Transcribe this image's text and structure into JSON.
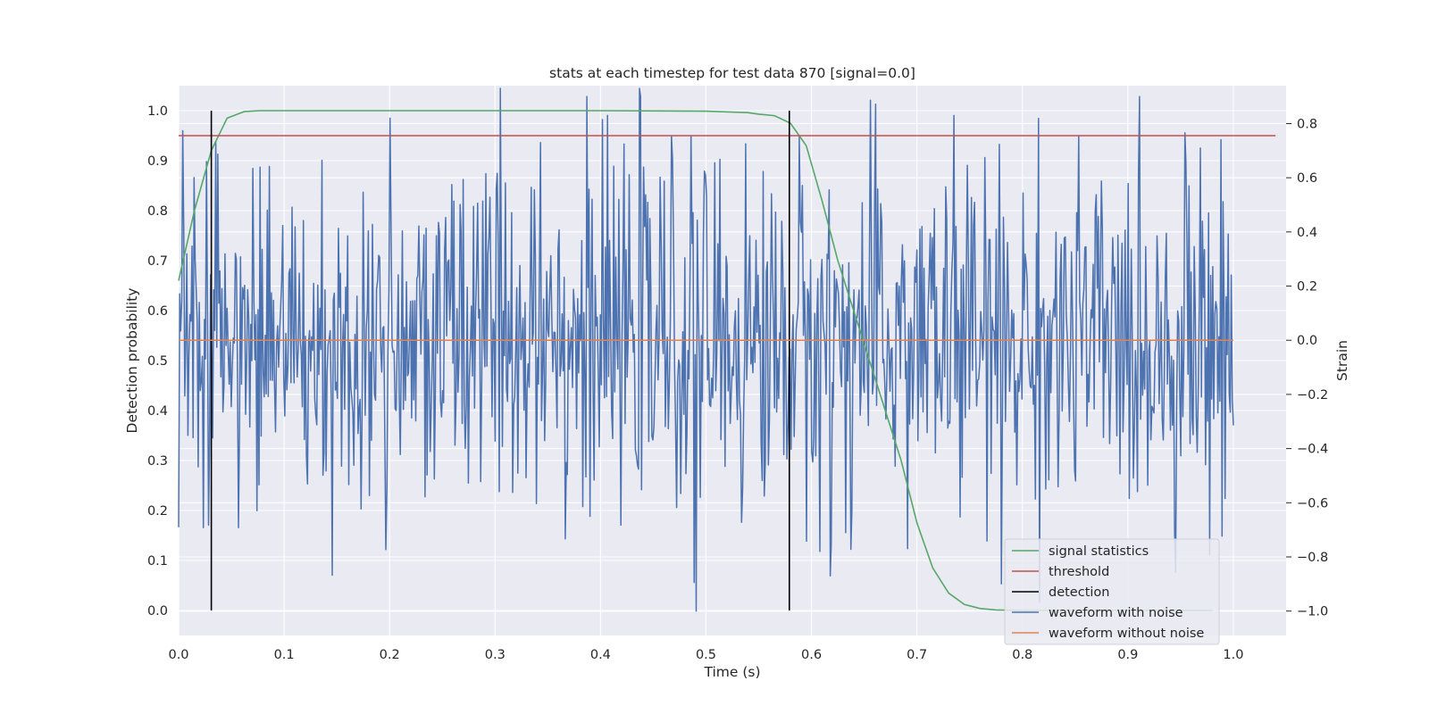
{
  "chart_data": {
    "type": "line",
    "title": "stats at each timestep for test data 870 [signal=0.0]",
    "xlabel": "Time (s)",
    "ylabel": "Detection probability",
    "y2label": "Strain",
    "xlim": [
      0.0,
      1.05
    ],
    "ylim": [
      -0.05,
      1.05
    ],
    "y2lim": [
      -1.09,
      0.94
    ],
    "xticks": [
      "0.0",
      "0.1",
      "0.2",
      "0.3",
      "0.4",
      "0.5",
      "0.6",
      "0.7",
      "0.8",
      "0.9",
      "1.0"
    ],
    "yticks": [
      "0.0",
      "0.1",
      "0.2",
      "0.3",
      "0.4",
      "0.5",
      "0.6",
      "0.7",
      "0.8",
      "0.9",
      "1.0"
    ],
    "y2ticks": [
      "−1.0",
      "−0.8",
      "−0.6",
      "−0.4",
      "−0.2",
      "0.0",
      "0.2",
      "0.4",
      "0.6",
      "0.8"
    ],
    "grid": true,
    "legend_position": "lower-right",
    "series": [
      {
        "name": "signal statistics",
        "color": "#55a868",
        "axis": "left",
        "x": [
          0.0,
          0.015,
          0.031,
          0.046,
          0.062,
          0.077,
          0.093,
          0.2,
          0.3,
          0.4,
          0.5,
          0.54,
          0.55,
          0.565,
          0.58,
          0.595,
          0.61,
          0.625,
          0.64,
          0.655,
          0.67,
          0.685,
          0.7,
          0.715,
          0.73,
          0.745,
          0.76,
          0.775,
          0.8,
          0.9,
          0.98
        ],
        "y": [
          0.66,
          0.8,
          0.92,
          0.985,
          0.998,
          1.0,
          1.0,
          1.0,
          1.0,
          1.0,
          0.999,
          0.996,
          0.993,
          0.99,
          0.975,
          0.93,
          0.82,
          0.7,
          0.6,
          0.5,
          0.4,
          0.3,
          0.175,
          0.085,
          0.035,
          0.012,
          0.004,
          0.001,
          0.0,
          0.0,
          0.0
        ]
      },
      {
        "name": "threshold",
        "color": "#c44e52",
        "axis": "left",
        "x": [
          0.0,
          1.04
        ],
        "y": [
          0.95,
          0.95
        ]
      },
      {
        "name": "detection",
        "color": "#000000",
        "axis": "left",
        "segments": [
          {
            "x": 0.031,
            "y0": 0.0,
            "y1": 1.0
          },
          {
            "x": 0.579,
            "y0": 0.0,
            "y1": 1.0
          }
        ]
      },
      {
        "name": "waveform with noise",
        "color": "#4c72b0",
        "axis": "right",
        "x_start": 0.0,
        "x_end": 1.0,
        "samples": 1024,
        "mean": 0.0,
        "std": 0.32,
        "extremes": [
          {
            "x": 0.305,
            "y": 0.93
          },
          {
            "x": 0.437,
            "y": 0.93
          },
          {
            "x": 0.491,
            "y": -1.0
          },
          {
            "x": 0.735,
            "y": 0.83
          },
          {
            "x": 0.2,
            "y": 0.82
          },
          {
            "x": 0.955,
            "y": 0.66
          },
          {
            "x": 0.618,
            "y": -0.87
          },
          {
            "x": 0.78,
            "y": -0.9
          }
        ]
      },
      {
        "name": "waveform without noise",
        "color": "#dd8452",
        "axis": "right",
        "x": [
          0.0,
          1.0
        ],
        "y": [
          0.0,
          0.0
        ]
      }
    ]
  }
}
